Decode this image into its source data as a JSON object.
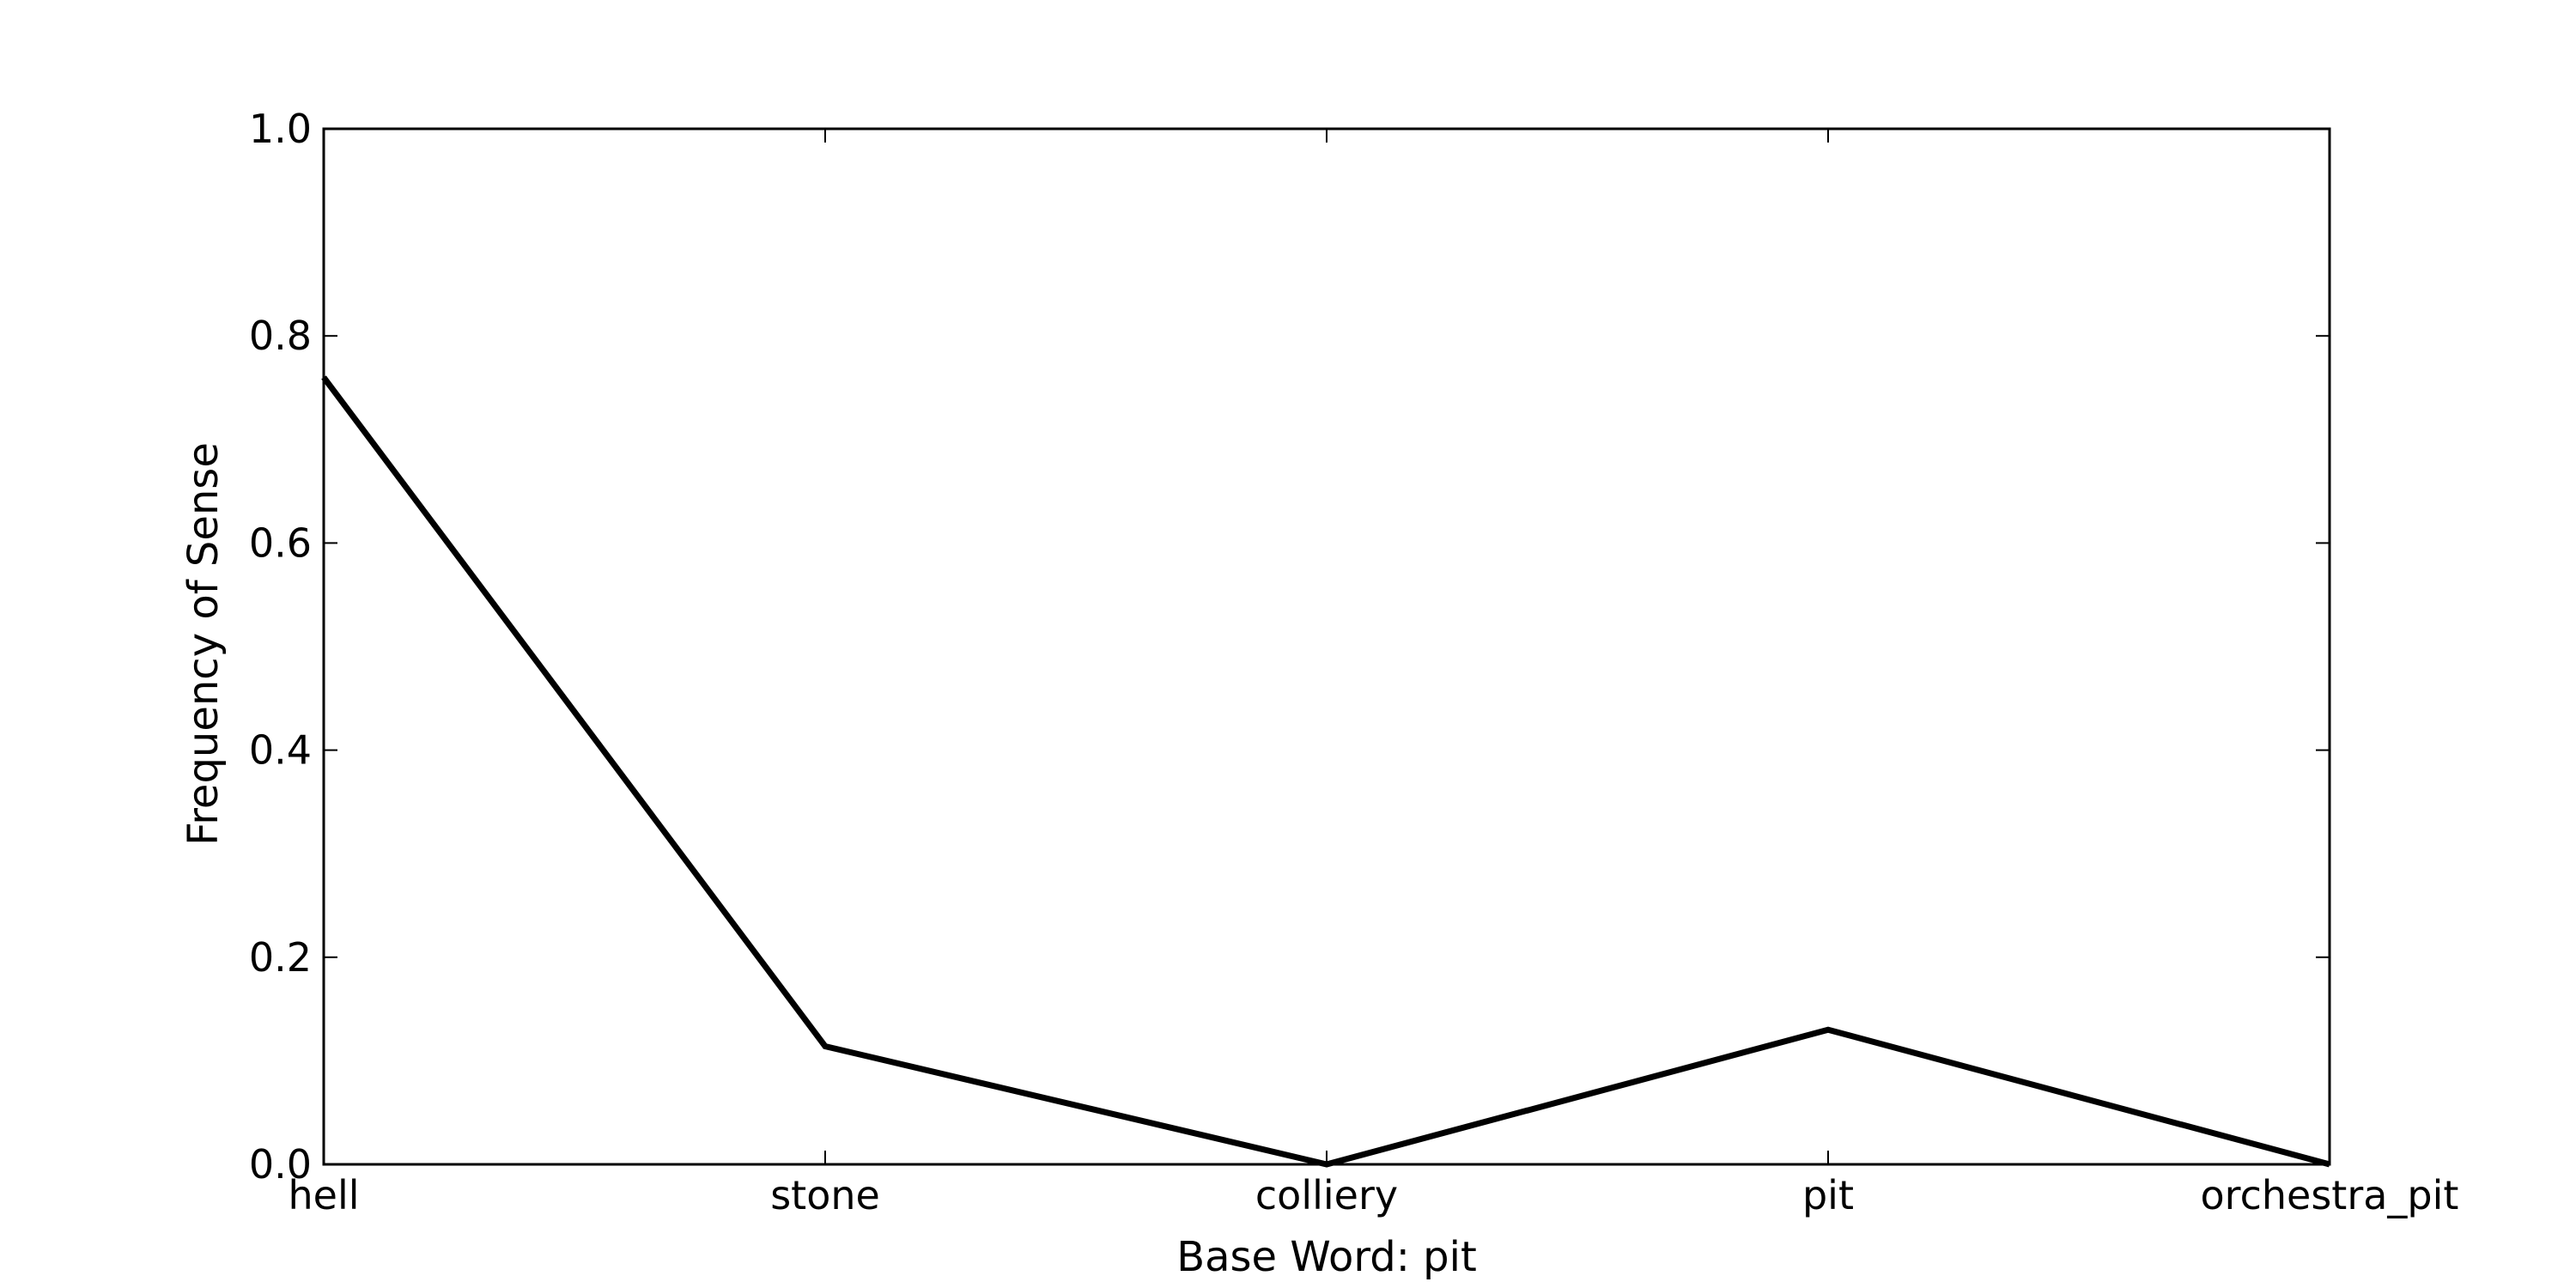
{
  "chart_data": {
    "type": "line",
    "title": "",
    "xlabel": "Base Word: pit",
    "ylabel": "Frequency of Sense",
    "categories": [
      "hell",
      "stone",
      "colliery",
      "pit",
      "orchestra_pit"
    ],
    "series": [
      {
        "values": [
          0.76,
          0.114,
          0.0,
          0.13,
          0.0
        ]
      }
    ],
    "ylim": [
      0,
      1.0
    ],
    "yticks": [
      "0.0",
      "0.2",
      "0.4",
      "0.6",
      "0.8",
      "1.0"
    ],
    "grid": false,
    "line_color": "#000000"
  }
}
